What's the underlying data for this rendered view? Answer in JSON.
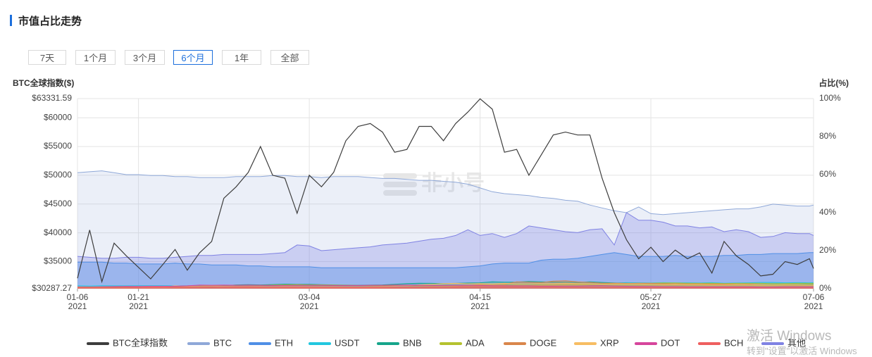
{
  "header": {
    "title": "市值占比走势"
  },
  "buttons": {
    "options": [
      "7天",
      "1个月",
      "3个月",
      "6个月",
      "1年",
      "全部"
    ],
    "selected": "6个月"
  },
  "watermark": "非小号",
  "overlay": {
    "line1": "激活 Windows",
    "line2": "转到\"设置\"以激活 Windows"
  },
  "chart_data": {
    "type": "line",
    "y_label": "BTC全球指数($)",
    "y2_label": "占比(%)",
    "xlim": [
      "2021-01-06",
      "2021-07-06"
    ],
    "xticks": [
      {
        "value": "2021-01-06",
        "label": "01-06",
        "year": "2021"
      },
      {
        "value": "2021-01-21",
        "label": "01-21",
        "year": "2021"
      },
      {
        "value": "2021-03-04",
        "label": "03-04",
        "year": "2021"
      },
      {
        "value": "2021-04-15",
        "label": "04-15",
        "year": "2021"
      },
      {
        "value": "2021-05-27",
        "label": "05-27",
        "year": "2021"
      },
      {
        "value": "2021-07-06",
        "label": "07-06",
        "year": "2021"
      }
    ],
    "ylim": [
      30287.27,
      63331.59
    ],
    "yticks": [
      {
        "value": 30287.27,
        "label": "$30287.27"
      },
      {
        "value": 35000,
        "label": "$35000"
      },
      {
        "value": 40000,
        "label": "$40000"
      },
      {
        "value": 45000,
        "label": "$45000"
      },
      {
        "value": 50000,
        "label": "$50000"
      },
      {
        "value": 55000,
        "label": "$55000"
      },
      {
        "value": 60000,
        "label": "$60000"
      },
      {
        "value": 63331.59,
        "label": "$63331.59"
      }
    ],
    "y2lim": [
      0,
      100
    ],
    "y2ticks": [
      {
        "value": 0,
        "label": "0%"
      },
      {
        "value": 20,
        "label": "20%"
      },
      {
        "value": 40,
        "label": "40%"
      },
      {
        "value": 60,
        "label": "60%"
      },
      {
        "value": 80,
        "label": "80%"
      },
      {
        "value": 100,
        "label": "100%"
      }
    ],
    "grid": true,
    "x": [
      "2021-01-06",
      "2021-01-09",
      "2021-01-12",
      "2021-01-15",
      "2021-01-18",
      "2021-01-21",
      "2021-01-24",
      "2021-01-27",
      "2021-01-30",
      "2021-02-02",
      "2021-02-05",
      "2021-02-08",
      "2021-02-11",
      "2021-02-14",
      "2021-02-17",
      "2021-02-20",
      "2021-02-23",
      "2021-02-26",
      "2021-03-01",
      "2021-03-04",
      "2021-03-07",
      "2021-03-10",
      "2021-03-13",
      "2021-03-16",
      "2021-03-19",
      "2021-03-22",
      "2021-03-25",
      "2021-03-28",
      "2021-03-31",
      "2021-04-03",
      "2021-04-06",
      "2021-04-09",
      "2021-04-12",
      "2021-04-15",
      "2021-04-18",
      "2021-04-21",
      "2021-04-24",
      "2021-04-27",
      "2021-04-30",
      "2021-05-03",
      "2021-05-06",
      "2021-05-09",
      "2021-05-12",
      "2021-05-15",
      "2021-05-18",
      "2021-05-21",
      "2021-05-24",
      "2021-05-27",
      "2021-05-30",
      "2021-06-02",
      "2021-06-05",
      "2021-06-08",
      "2021-06-11",
      "2021-06-14",
      "2021-06-17",
      "2021-06-20",
      "2021-06-23",
      "2021-06-26",
      "2021-06-29",
      "2021-07-02",
      "2021-07-05",
      "2021-07-06"
    ],
    "series": [
      {
        "name": "BTC全球指数",
        "color": "#3d3d3d",
        "type": "line",
        "axis": "y",
        "values": [
          32100,
          40500,
          31500,
          38200,
          36000,
          34000,
          32000,
          34500,
          37100,
          33500,
          36500,
          38500,
          46000,
          48000,
          50500,
          55000,
          50000,
          49500,
          43400,
          50000,
          48000,
          50500,
          56000,
          58500,
          59000,
          57500,
          54000,
          54500,
          58500,
          58500,
          56000,
          59000,
          61000,
          63300,
          61500,
          54000,
          54500,
          50000,
          53500,
          57000,
          57500,
          57000,
          57000,
          49500,
          43500,
          38800,
          35500,
          37500,
          35000,
          37000,
          35500,
          36500,
          33000,
          38500,
          36000,
          34500,
          32500,
          32800,
          35000,
          34500,
          35500,
          33800
        ]
      },
      {
        "name": "BTC",
        "color": "#8fa8d8",
        "type": "area",
        "axis": "y2",
        "values": [
          61,
          61.5,
          62,
          61,
          60,
          60,
          59.5,
          59.5,
          59,
          59,
          58.5,
          58.5,
          58.5,
          59,
          59,
          59,
          59.5,
          59.5,
          59,
          59,
          58.5,
          59,
          59,
          59,
          58.5,
          58,
          58,
          57.5,
          57,
          57,
          56.5,
          56,
          55,
          53,
          51,
          50,
          49.5,
          49,
          48,
          47.5,
          46.5,
          46,
          44,
          42.5,
          41,
          40,
          43,
          39.5,
          39,
          39.5,
          40,
          40.5,
          41,
          41.5,
          42,
          42,
          43,
          44.5,
          44,
          43.5,
          43.5,
          44
        ]
      },
      {
        "name": "ETH",
        "color": "#4f8fe6",
        "type": "area",
        "axis": "y2",
        "values": [
          14,
          14,
          14,
          13.5,
          13.5,
          13,
          13,
          13,
          13.5,
          13,
          13,
          12.5,
          12.5,
          12.5,
          12,
          12,
          11.5,
          11.5,
          11.5,
          11.5,
          11,
          11,
          11,
          11,
          11,
          11,
          11,
          11,
          11,
          11,
          11,
          11,
          11.5,
          12,
          13,
          13.5,
          13.5,
          13.5,
          15,
          15.5,
          15.5,
          16,
          17,
          18,
          19,
          18,
          17,
          17,
          17,
          17.5,
          17,
          17,
          17,
          17.5,
          17.5,
          18,
          18,
          18.5,
          18.5,
          18.5,
          19,
          19
        ]
      },
      {
        "name": "USDT",
        "color": "#22c7df",
        "type": "area",
        "axis": "y2",
        "values": [
          1.5,
          1.4,
          1.6,
          1.5,
          1.5,
          1.6,
          1.6,
          1.6,
          1.5,
          1.6,
          1.6,
          1.5,
          1.4,
          1.4,
          1.3,
          1.3,
          1.4,
          1.5,
          1.7,
          1.6,
          1.6,
          1.6,
          1.5,
          1.5,
          1.5,
          1.6,
          1.7,
          1.7,
          1.7,
          1.7,
          1.8,
          1.8,
          1.8,
          1.8,
          2.0,
          2.2,
          2.1,
          2.3,
          2.2,
          2.1,
          2.1,
          2.1,
          2.2,
          2.5,
          2.9,
          3.2,
          3.1,
          3.0,
          3.2,
          3.1,
          3.1,
          3.0,
          3.2,
          2.9,
          3.0,
          3.1,
          3.3,
          3.3,
          3.1,
          3.2,
          3.1,
          3.2
        ]
      },
      {
        "name": "BNB",
        "color": "#16a58b",
        "type": "area",
        "axis": "y2",
        "values": [
          0.6,
          0.6,
          0.6,
          0.6,
          0.6,
          0.6,
          0.6,
          0.6,
          0.7,
          0.8,
          0.9,
          1.1,
          1.5,
          2.0,
          2.1,
          2.0,
          2.2,
          2.4,
          2.3,
          2.3,
          2.1,
          2.0,
          1.9,
          1.8,
          1.9,
          2.0,
          2.3,
          2.7,
          2.9,
          2.8,
          2.7,
          2.8,
          3.0,
          3.1,
          3.6,
          3.4,
          3.5,
          3.8,
          3.6,
          3.5,
          3.4,
          3.3,
          3.6,
          3.3,
          3.0,
          2.8,
          2.6,
          2.7,
          2.8,
          2.6,
          2.5,
          2.4,
          2.3,
          2.3,
          2.3,
          2.2,
          2.2,
          2.2,
          2.3,
          2.3,
          2.3,
          2.3
        ]
      },
      {
        "name": "ADA",
        "color": "#b5c22f",
        "type": "area",
        "axis": "y2",
        "values": [
          0.6,
          0.7,
          0.6,
          0.7,
          0.7,
          0.7,
          0.8,
          0.8,
          0.9,
          1.1,
          1.4,
          1.6,
          1.8,
          1.8,
          1.8,
          1.7,
          1.9,
          2.0,
          2.1,
          2.0,
          2.0,
          1.9,
          1.8,
          1.7,
          1.6,
          1.5,
          1.5,
          1.4,
          1.4,
          1.3,
          1.3,
          1.3,
          1.4,
          1.5,
          1.6,
          1.8,
          1.8,
          1.7,
          1.9,
          2.0,
          2.2,
          2.3,
          2.4,
          2.5,
          2.7,
          2.7,
          2.8,
          2.9,
          3.0,
          3.0,
          2.9,
          2.8,
          2.9,
          2.7,
          2.8,
          2.8,
          2.8,
          2.7,
          2.7,
          2.8,
          2.8,
          2.8
        ]
      },
      {
        "name": "DOGE",
        "color": "#d9864b",
        "type": "area",
        "axis": "y2",
        "values": [
          0.2,
          0.2,
          0.2,
          0.2,
          0.2,
          0.2,
          0.3,
          0.6,
          0.4,
          0.4,
          0.6,
          0.6,
          0.5,
          0.5,
          0.4,
          0.4,
          0.4,
          0.4,
          0.3,
          0.3,
          0.3,
          0.3,
          0.3,
          0.3,
          0.3,
          0.3,
          0.3,
          0.4,
          0.4,
          0.4,
          0.5,
          1.0,
          1.7,
          2.2,
          2.0,
          2.3,
          3.6,
          3.4,
          3.2,
          4.0,
          4.2,
          3.6,
          3.3,
          2.9,
          2.9,
          2.8,
          2.9,
          2.8,
          2.6,
          2.6,
          2.5,
          2.5,
          2.4,
          2.4,
          2.3,
          2.3,
          2.1,
          2.0,
          2.0,
          2.0,
          2.0,
          2.0
        ]
      },
      {
        "name": "XRP",
        "color": "#f7bd63",
        "type": "area",
        "axis": "y2",
        "values": [
          0.8,
          0.8,
          0.8,
          0.9,
          1.0,
          1.0,
          0.9,
          0.9,
          1.5,
          1.3,
          1.2,
          1.3,
          1.3,
          1.2,
          1.2,
          1.2,
          1.1,
          1.2,
          1.1,
          1.1,
          1.1,
          1.1,
          1.0,
          1.0,
          1.0,
          1.1,
          1.3,
          1.5,
          2.0,
          2.3,
          2.7,
          2.8,
          2.6,
          2.7,
          2.6,
          2.8,
          2.6,
          2.6,
          2.7,
          2.7,
          2.9,
          2.7,
          2.6,
          2.4,
          2.5,
          2.5,
          2.5,
          2.3,
          2.2,
          2.3,
          2.2,
          2.2,
          2.0,
          2.0,
          2.1,
          2.0,
          2.0,
          2.0,
          2.1,
          2.1,
          2.0,
          2.0
        ]
      },
      {
        "name": "DOT",
        "color": "#d6459c",
        "type": "area",
        "axis": "y2",
        "values": [
          0.9,
          0.9,
          1.0,
          1.1,
          1.2,
          1.2,
          1.3,
          1.3,
          1.3,
          1.5,
          1.9,
          1.8,
          1.9,
          1.8,
          1.9,
          1.8,
          1.7,
          1.7,
          1.8,
          1.8,
          1.8,
          1.7,
          1.7,
          1.7,
          1.8,
          1.8,
          1.9,
          1.9,
          1.8,
          1.7,
          1.7,
          1.8,
          1.8,
          1.7,
          1.6,
          1.6,
          1.5,
          1.5,
          1.4,
          1.4,
          1.4,
          1.4,
          1.5,
          1.6,
          1.4,
          1.3,
          1.2,
          1.2,
          1.1,
          1.1,
          1.0,
          1.0,
          1.0,
          1.0,
          1.0,
          1.0,
          0.9,
          0.9,
          1.0,
          1.0,
          1.0,
          1.0
        ]
      },
      {
        "name": "BCH",
        "color": "#ef5f5f",
        "type": "area",
        "axis": "y2",
        "values": [
          0.9,
          0.9,
          0.8,
          0.8,
          0.8,
          0.7,
          0.7,
          0.7,
          0.7,
          0.7,
          0.7,
          0.7,
          0.7,
          0.8,
          0.8,
          0.7,
          0.7,
          0.7,
          0.7,
          0.7,
          0.6,
          0.6,
          0.6,
          0.6,
          0.6,
          0.6,
          0.6,
          0.6,
          0.6,
          0.7,
          0.7,
          0.7,
          0.8,
          0.8,
          0.9,
          0.9,
          0.9,
          0.8,
          0.8,
          0.8,
          0.7,
          0.7,
          0.7,
          0.6,
          0.6,
          0.6,
          0.6,
          0.5,
          0.5,
          0.5,
          0.5,
          0.5,
          0.5,
          0.5,
          0.5,
          0.5,
          0.4,
          0.4,
          0.4,
          0.4,
          0.4,
          0.4
        ]
      },
      {
        "name": "其他",
        "color": "#7f82e3",
        "type": "area",
        "axis": "y2",
        "values": [
          17,
          16.5,
          16,
          16,
          16.5,
          16.5,
          16,
          16,
          16.5,
          17,
          17.5,
          17.5,
          18,
          18,
          18,
          18,
          18.5,
          19,
          23,
          22.5,
          20,
          20.5,
          21,
          21.5,
          22,
          23,
          23.5,
          24,
          25,
          26,
          26.5,
          28,
          31,
          28,
          29,
          27,
          29,
          33,
          32,
          31,
          30,
          29.5,
          31,
          31.5,
          23,
          40,
          36,
          36,
          35,
          33,
          33,
          32,
          32.5,
          30,
          31,
          30,
          27,
          27.5,
          29.5,
          29,
          29,
          28
        ]
      }
    ]
  }
}
